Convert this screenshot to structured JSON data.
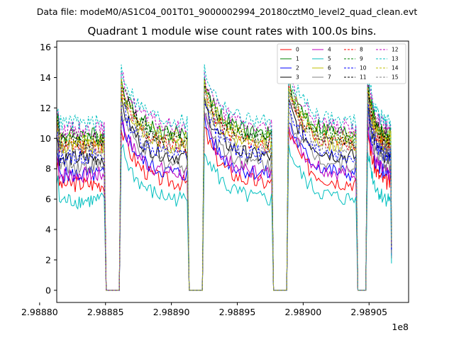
{
  "chart_data": {
    "type": "line",
    "suptitle": "Data file: modeM0/AS1C04_001T01_9000002994_20180cztM0_level2_quad_clean.evt",
    "title": "Quadrant 1 module wise count rates with 100.0s bins.",
    "xlabel": "",
    "ylabel": "",
    "x_offset_label": "1e8",
    "xlim": [
      2.988813,
      2.98908
    ],
    "ylim": [
      -0.8,
      16.4
    ],
    "x_ticks": [
      2.9888,
      2.98885,
      2.9889,
      2.98895,
      2.989,
      2.98905
    ],
    "x_tick_labels": [
      "2.98880",
      "2.98885",
      "2.98890",
      "2.98895",
      "2.98900",
      "2.98905"
    ],
    "y_ticks": [
      0,
      2,
      4,
      6,
      8,
      10,
      12,
      14,
      16
    ],
    "y_tick_labels": [
      "0",
      "2",
      "4",
      "6",
      "8",
      "10",
      "12",
      "14",
      "16"
    ],
    "grid": false,
    "legend_location": "top-right",
    "legend_columns": 4,
    "orbit_segments": [
      {
        "x_start": 2.988813,
        "x_end": 2.988849,
        "gap_end": 2.988862
      },
      {
        "x_start": 2.988862,
        "x_end": 2.988912,
        "gap_end": 2.988925
      },
      {
        "x_start": 2.988925,
        "x_end": 2.988976,
        "gap_end": 2.988989
      },
      {
        "x_start": 2.988989,
        "x_end": 2.98904,
        "gap_end": 2.989049
      },
      {
        "x_start": 2.989049,
        "x_end": 2.989067,
        "gap_end": null
      }
    ],
    "series": [
      {
        "name": "0",
        "color": "#ff0000",
        "style": "solid",
        "base": 7.0
      },
      {
        "name": "1",
        "color": "#008000",
        "style": "solid",
        "base": 10.2
      },
      {
        "name": "2",
        "color": "#0000ff",
        "style": "solid",
        "base": 7.6
      },
      {
        "name": "3",
        "color": "#000000",
        "style": "solid",
        "base": 8.7
      },
      {
        "name": "4",
        "color": "#bf00bf",
        "style": "solid",
        "base": 7.6
      },
      {
        "name": "5",
        "color": "#00bfbf",
        "style": "solid",
        "base": 5.9
      },
      {
        "name": "6",
        "color": "#bfbf00",
        "style": "solid",
        "base": 9.4
      },
      {
        "name": "7",
        "color": "#808080",
        "style": "solid",
        "base": 8.2
      },
      {
        "name": "8",
        "color": "#ff0000",
        "style": "dashed",
        "base": 9.5
      },
      {
        "name": "9",
        "color": "#008000",
        "style": "dashed",
        "base": 10.0
      },
      {
        "name": "10",
        "color": "#0000ff",
        "style": "dashed",
        "base": 8.8
      },
      {
        "name": "11",
        "color": "#000000",
        "style": "dashed",
        "base": 9.8
      },
      {
        "name": "12",
        "color": "#bf00bf",
        "style": "dashed",
        "base": 10.6
      },
      {
        "name": "13",
        "color": "#00bfbf",
        "style": "dashed",
        "base": 11.0
      },
      {
        "name": "14",
        "color": "#bfbf00",
        "style": "dashed",
        "base": 9.9
      },
      {
        "name": "15",
        "color": "#808080",
        "style": "dashed",
        "base": 9.2
      }
    ]
  }
}
